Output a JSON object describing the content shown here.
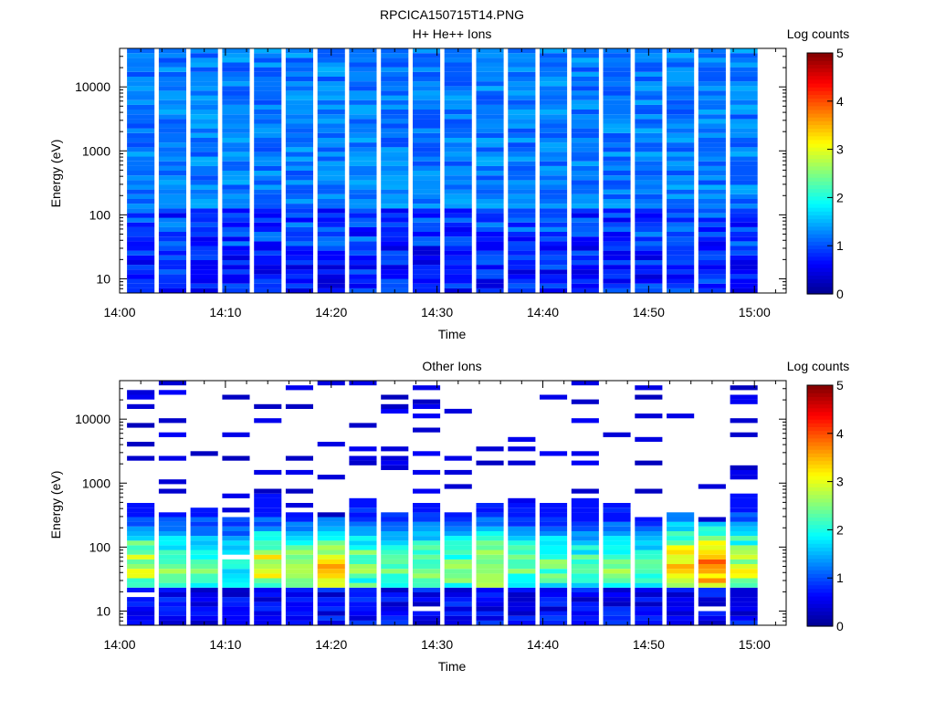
{
  "figure_title": "RPCICA150715T14.PNG",
  "chart_data": [
    {
      "type": "heatmap",
      "title": "H+ He++ Ions",
      "xlabel": "Time",
      "ylabel": "Energy (eV)",
      "colorbar_label": "Log counts",
      "colorbar_ticks": [
        "0",
        "1",
        "2",
        "3",
        "4",
        "5"
      ],
      "clim": [
        0,
        5
      ],
      "x_ticks": [
        "14:00",
        "14:10",
        "14:20",
        "14:30",
        "14:40",
        "14:50",
        "15:00"
      ],
      "xlim": [
        "14:00",
        "15:03"
      ],
      "y_scale": "log",
      "y_ticks": [
        "10",
        "100",
        "1000",
        "10000"
      ],
      "ylim": [
        6,
        40000
      ],
      "time_bins": [
        "14:02",
        "14:05",
        "14:08",
        "14:11",
        "14:14",
        "14:17",
        "14:20",
        "14:23",
        "14:26",
        "14:29",
        "14:32",
        "14:35",
        "14:38",
        "14:41",
        "14:44",
        "14:47",
        "14:50",
        "14:53",
        "14:56",
        "14:59"
      ],
      "energy_range_ev": [
        6,
        40000
      ],
      "log_counts_range": [
        0.3,
        1.8
      ],
      "empty_cells": [
        {
          "time": "14:45",
          "energy_ev": 9
        }
      ],
      "colormap": [
        "#00008f",
        "#0000ff",
        "#0080ff",
        "#00ffff",
        "#80ff80",
        "#ffff00",
        "#ff8000",
        "#ff0000",
        "#800000"
      ]
    },
    {
      "type": "heatmap",
      "title": "Other Ions",
      "xlabel": "Time",
      "ylabel": "Energy (eV)",
      "colorbar_label": "Log counts",
      "colorbar_ticks": [
        "0",
        "1",
        "2",
        "3",
        "4",
        "5"
      ],
      "clim": [
        0,
        5
      ],
      "x_ticks": [
        "14:00",
        "14:10",
        "14:20",
        "14:30",
        "14:40",
        "14:50",
        "15:00"
      ],
      "xlim": [
        "14:00",
        "15:03"
      ],
      "y_scale": "log",
      "y_ticks": [
        "10",
        "100",
        "1000",
        "10000"
      ],
      "ylim": [
        6,
        40000
      ],
      "time_bins": [
        "14:02",
        "14:05",
        "14:08",
        "14:11",
        "14:14",
        "14:17",
        "14:20",
        "14:23",
        "14:26",
        "14:29",
        "14:32",
        "14:35",
        "14:38",
        "14:41",
        "14:44",
        "14:47",
        "14:50",
        "14:53",
        "14:56",
        "14:59"
      ],
      "energy_range_ev": [
        6,
        40000
      ],
      "dense_region_max_ev": [
        500,
        350,
        430,
        300,
        700,
        350,
        280,
        600,
        350,
        480,
        350,
        470,
        520,
        500,
        600,
        520,
        300,
        350,
        230,
        700
      ],
      "peak_log_counts": [
        2.6,
        2.2,
        2.2,
        1.8,
        2.8,
        2.6,
        3.1,
        2.4,
        2.1,
        2.3,
        2.3,
        2.6,
        2.2,
        2.1,
        2.0,
        2.2,
        2.0,
        3.3,
        3.8,
        2.8
      ],
      "empty_cells": [
        {
          "time": "14:02",
          "energy_ev": 18
        },
        {
          "time": "14:11",
          "energy_ev": 70
        },
        {
          "time": "14:29",
          "energy_ev": 10
        },
        {
          "time": "14:56",
          "energy_ev": 10
        }
      ],
      "colormap": [
        "#00008f",
        "#0000ff",
        "#0080ff",
        "#00ffff",
        "#80ff80",
        "#ffff00",
        "#ff8000",
        "#ff0000",
        "#800000"
      ]
    }
  ]
}
